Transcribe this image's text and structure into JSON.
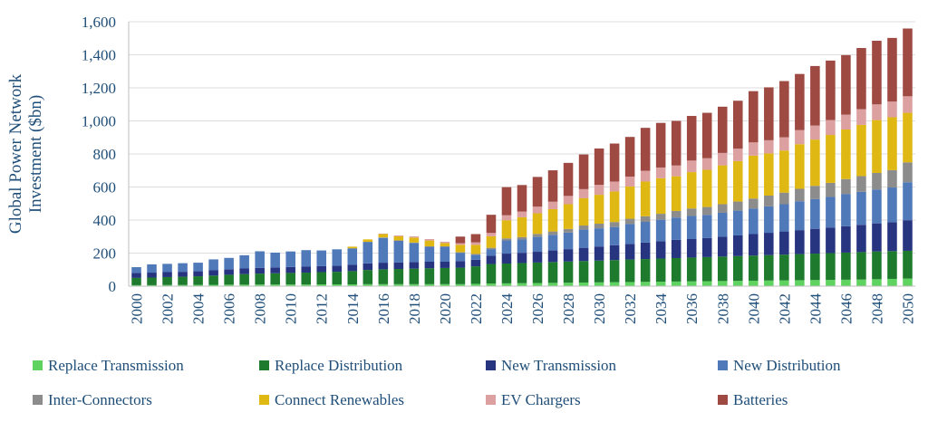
{
  "chart_data": {
    "type": "bar",
    "stacked": true,
    "ylabel_lines": [
      "Global Power Network",
      "Investment ($bn)"
    ],
    "ylim": [
      0,
      1600
    ],
    "yticks": [
      0,
      200,
      400,
      600,
      800,
      1000,
      1200,
      1400,
      1600
    ],
    "ytick_labels": [
      "0",
      "200",
      "400",
      "600",
      "800",
      "1,000",
      "1,200",
      "1,400",
      "1,600"
    ],
    "grid": true,
    "legend_position": "bottom",
    "x": [
      2000,
      2001,
      2002,
      2003,
      2004,
      2005,
      2006,
      2007,
      2008,
      2009,
      2010,
      2011,
      2012,
      2013,
      2014,
      2015,
      2016,
      2017,
      2018,
      2019,
      2020,
      2021,
      2022,
      2023,
      2024,
      2025,
      2026,
      2027,
      2028,
      2029,
      2030,
      2031,
      2032,
      2033,
      2034,
      2035,
      2036,
      2037,
      2038,
      2039,
      2040,
      2041,
      2042,
      2043,
      2044,
      2045,
      2046,
      2047,
      2048,
      2049,
      2050
    ],
    "x_labels": [
      "2000",
      "",
      "2002",
      "",
      "2004",
      "",
      "2006",
      "",
      "2008",
      "",
      "2010",
      "",
      "2012",
      "",
      "2014",
      "",
      "2016",
      "",
      "2018",
      "",
      "2020",
      "",
      "2022",
      "",
      "2024",
      "",
      "2026",
      "",
      "2028",
      "",
      "2030",
      "",
      "2032",
      "",
      "2034",
      "",
      "2036",
      "",
      "2038",
      "",
      "2040",
      "",
      "2042",
      "",
      "2044",
      "",
      "2046",
      "",
      "2048",
      "",
      "2050"
    ],
    "series": [
      {
        "name": "Replace Transmission",
        "color": "#5fd35f",
        "values": [
          6,
          6,
          7,
          7,
          8,
          8,
          9,
          9,
          10,
          10,
          10,
          10,
          11,
          11,
          11,
          12,
          12,
          12,
          12,
          12,
          12,
          12,
          14,
          16,
          17,
          18,
          19,
          20,
          21,
          22,
          23,
          24,
          25,
          26,
          27,
          28,
          29,
          30,
          31,
          32,
          33,
          34,
          35,
          36,
          37,
          38,
          39,
          40,
          42,
          44,
          46
        ]
      },
      {
        "name": "Replace Distribution",
        "color": "#1e7b2e",
        "values": [
          44,
          46,
          48,
          50,
          52,
          56,
          60,
          64,
          66,
          68,
          70,
          72,
          74,
          76,
          80,
          86,
          90,
          92,
          94,
          96,
          98,
          100,
          106,
          118,
          120,
          122,
          124,
          126,
          128,
          130,
          132,
          134,
          136,
          138,
          140,
          142,
          144,
          146,
          148,
          150,
          152,
          154,
          156,
          158,
          160,
          162,
          164,
          166,
          168,
          168,
          168
        ]
      },
      {
        "name": "New Transmission",
        "color": "#273480",
        "values": [
          30,
          30,
          30,
          30,
          30,
          32,
          32,
          34,
          35,
          35,
          36,
          36,
          36,
          36,
          38,
          40,
          40,
          40,
          40,
          40,
          38,
          40,
          40,
          50,
          60,
          62,
          65,
          70,
          75,
          80,
          85,
          90,
          95,
          100,
          105,
          110,
          112,
          115,
          120,
          125,
          130,
          135,
          140,
          145,
          150,
          155,
          160,
          165,
          170,
          175,
          185
        ]
      },
      {
        "name": "New Distribution",
        "color": "#4f79b8",
        "values": [
          35,
          50,
          50,
          52,
          52,
          66,
          70,
          80,
          100,
          90,
          94,
          100,
          95,
          100,
          100,
          130,
          150,
          130,
          115,
          90,
          90,
          50,
          30,
          40,
          80,
          80,
          90,
          95,
          100,
          110,
          110,
          110,
          120,
          125,
          130,
          135,
          140,
          140,
          145,
          150,
          155,
          160,
          165,
          175,
          180,
          185,
          195,
          200,
          205,
          210,
          230
        ]
      },
      {
        "name": "Inter-Connectors",
        "color": "#8c8c8c",
        "values": [
          0,
          0,
          0,
          0,
          0,
          0,
          0,
          0,
          0,
          0,
          0,
          0,
          0,
          0,
          0,
          0,
          3,
          3,
          3,
          3,
          3,
          3,
          5,
          8,
          12,
          15,
          18,
          20,
          22,
          25,
          28,
          30,
          32,
          34,
          36,
          40,
          45,
          48,
          52,
          55,
          60,
          65,
          70,
          75,
          80,
          85,
          90,
          95,
          100,
          105,
          120
        ]
      },
      {
        "name": "Connect Renewables",
        "color": "#e0b814",
        "values": [
          0,
          0,
          0,
          0,
          0,
          0,
          0,
          0,
          0,
          0,
          0,
          0,
          0,
          0,
          10,
          15,
          20,
          25,
          30,
          35,
          20,
          45,
          55,
          70,
          110,
          120,
          125,
          135,
          150,
          165,
          175,
          185,
          195,
          210,
          215,
          210,
          220,
          225,
          235,
          245,
          260,
          255,
          255,
          270,
          280,
          290,
          300,
          310,
          320,
          320,
          300
        ]
      },
      {
        "name": "EV Chargers",
        "color": "#dca0a0",
        "values": [
          0,
          0,
          0,
          0,
          0,
          0,
          0,
          0,
          0,
          0,
          0,
          0,
          0,
          0,
          0,
          0,
          3,
          5,
          7,
          9,
          8,
          10,
          15,
          20,
          30,
          35,
          40,
          45,
          50,
          55,
          60,
          60,
          60,
          65,
          65,
          65,
          70,
          70,
          75,
          75,
          80,
          80,
          80,
          85,
          85,
          90,
          90,
          95,
          95,
          95,
          100
        ]
      },
      {
        "name": "Batteries",
        "color": "#9e4a43",
        "values": [
          0,
          0,
          0,
          0,
          0,
          0,
          0,
          0,
          0,
          0,
          0,
          0,
          0,
          0,
          0,
          0,
          0,
          0,
          0,
          0,
          0,
          40,
          50,
          110,
          170,
          160,
          180,
          190,
          200,
          210,
          220,
          230,
          240,
          260,
          270,
          270,
          270,
          275,
          280,
          290,
          310,
          320,
          340,
          340,
          360,
          360,
          360,
          370,
          385,
          385,
          410
        ]
      }
    ]
  }
}
